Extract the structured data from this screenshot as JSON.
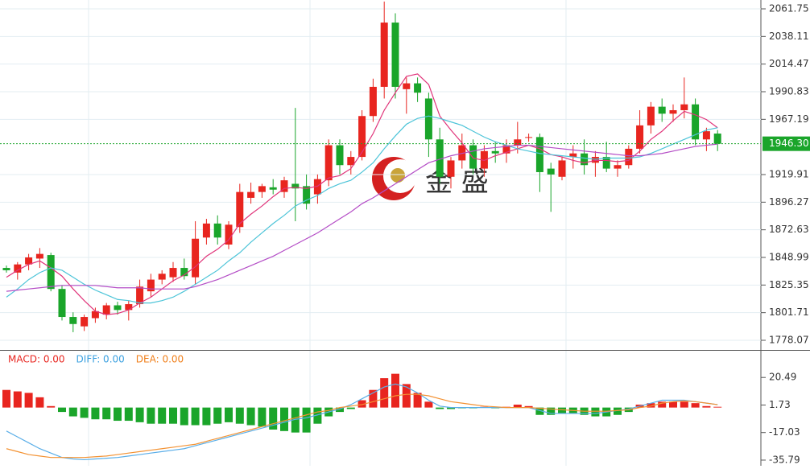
{
  "chart_data": [
    {
      "type": "candlestick",
      "watermark": "金 盛",
      "up_color": "#e8251f",
      "down_color": "#1aa52a",
      "open": [
        1840,
        1836,
        1843,
        1848,
        1851,
        1822,
        1798,
        1790,
        1797,
        1800,
        1808,
        1804,
        1809,
        1820,
        1830,
        1832,
        1840,
        1832,
        1866,
        1878,
        1860,
        1875,
        1900,
        1905,
        1909,
        1905,
        1912,
        1910,
        1903,
        1915,
        1945,
        1928,
        1935,
        1970,
        1995,
        2050,
        1993,
        1998,
        1985,
        1950,
        1918,
        1932,
        1945,
        1925,
        1940,
        1938,
        1945,
        1952,
        1952,
        1925,
        1918,
        1935,
        1938,
        1930,
        1935,
        1925,
        1928,
        1942,
        1962,
        1978,
        1972,
        1975,
        1980,
        1950,
        1955
      ],
      "high": [
        1842,
        1845,
        1852,
        1857,
        1853,
        1825,
        1802,
        1800,
        1806,
        1810,
        1811,
        1812,
        1830,
        1835,
        1838,
        1845,
        1848,
        1880,
        1882,
        1885,
        1880,
        1912,
        1913,
        1912,
        1916,
        1918,
        1977,
        1920,
        1920,
        1950,
        1950,
        1940,
        1975,
        2002,
        2068,
        2058,
        2003,
        2003,
        1990,
        1960,
        1935,
        1955,
        1950,
        1945,
        1948,
        1950,
        1965,
        1955,
        1955,
        1930,
        1935,
        1945,
        1950,
        1940,
        1948,
        1932,
        1945,
        1975,
        1982,
        1985,
        1980,
        2003,
        1985,
        1960,
        1958
      ],
      "low": [
        1836,
        1830,
        1838,
        1840,
        1820,
        1795,
        1785,
        1786,
        1793,
        1796,
        1800,
        1795,
        1806,
        1815,
        1826,
        1828,
        1830,
        1826,
        1860,
        1860,
        1856,
        1870,
        1895,
        1900,
        1903,
        1900,
        1880,
        1890,
        1895,
        1910,
        1920,
        1920,
        1932,
        1965,
        1985,
        1985,
        1972,
        1982,
        1935,
        1912,
        1908,
        1925,
        1920,
        1918,
        1930,
        1930,
        1938,
        1948,
        1905,
        1888,
        1915,
        1925,
        1920,
        1918,
        1922,
        1918,
        1925,
        1938,
        1955,
        1965,
        1965,
        1968,
        1945,
        1940,
        1940
      ],
      "close": [
        1838,
        1843,
        1849,
        1852,
        1822,
        1798,
        1792,
        1798,
        1803,
        1808,
        1804,
        1809,
        1824,
        1830,
        1835,
        1840,
        1833,
        1865,
        1878,
        1866,
        1877,
        1905,
        1905,
        1910,
        1907,
        1915,
        1908,
        1895,
        1916,
        1945,
        1928,
        1935,
        1970,
        1995,
        2050,
        1995,
        1998,
        1990,
        1950,
        1918,
        1932,
        1945,
        1925,
        1940,
        1938,
        1945,
        1950,
        1952,
        1922,
        1920,
        1932,
        1938,
        1928,
        1935,
        1925,
        1928,
        1942,
        1962,
        1978,
        1972,
        1975,
        1980,
        1950,
        1957,
        1946.3
      ],
      "series": [
        {
          "color": "#e0347a",
          "values": [
            1832,
            1838,
            1843,
            1846,
            1840,
            1833,
            1822,
            1812,
            1803,
            1800,
            1801,
            1804,
            1810,
            1815,
            1822,
            1829,
            1834,
            1841,
            1850,
            1856,
            1864,
            1878,
            1886,
            1893,
            1901,
            1908,
            1909,
            1908,
            1910,
            1917,
            1919,
            1925,
            1939,
            1955,
            1975,
            1990,
            2004,
            2006,
            1997,
            1970,
            1958,
            1947,
            1934,
            1932,
            1936,
            1939,
            1942,
            1945,
            1942,
            1937,
            1935,
            1932,
            1930,
            1932,
            1932,
            1931,
            1932,
            1940,
            1950,
            1957,
            1966,
            1974,
            1971,
            1967,
            1960
          ]
        },
        {
          "color": "#4cc4d8",
          "values": [
            1815,
            1822,
            1830,
            1836,
            1840,
            1838,
            1832,
            1826,
            1821,
            1817,
            1813,
            1812,
            1810,
            1810,
            1812,
            1815,
            1820,
            1826,
            1832,
            1838,
            1846,
            1853,
            1862,
            1870,
            1878,
            1885,
            1893,
            1898,
            1902,
            1908,
            1912,
            1915,
            1922,
            1930,
            1942,
            1953,
            1963,
            1968,
            1970,
            1968,
            1965,
            1962,
            1957,
            1952,
            1948,
            1945,
            1942,
            1940,
            1938,
            1937,
            1936,
            1935,
            1934,
            1933,
            1934,
            1934,
            1934,
            1935,
            1938,
            1942,
            1946,
            1950,
            1954,
            1958,
            1960
          ]
        },
        {
          "color": "#b44dc6",
          "values": [
            1820,
            1821,
            1822,
            1823,
            1824,
            1825,
            1825,
            1825,
            1825,
            1824,
            1823,
            1823,
            1823,
            1822,
            1822,
            1822,
            1822,
            1824,
            1827,
            1830,
            1834,
            1838,
            1842,
            1846,
            1850,
            1855,
            1860,
            1865,
            1870,
            1876,
            1882,
            1888,
            1895,
            1900,
            1906,
            1912,
            1918,
            1924,
            1930,
            1933,
            1936,
            1938,
            1940,
            1942,
            1943,
            1944,
            1945,
            1945,
            1944,
            1943,
            1942,
            1941,
            1940,
            1939,
            1938,
            1937,
            1936,
            1936,
            1937,
            1938,
            1940,
            1942,
            1944,
            1945,
            1946
          ]
        }
      ],
      "last_price": {
        "value": 1946.3,
        "label": "1946.30"
      },
      "last_price_color": "#1aa52a",
      "ylim": [
        1769.8,
        2069.32
      ],
      "yticks": [
        2061.75,
        2038.11,
        2014.47,
        1990.83,
        1967.19,
        1919.91,
        1896.27,
        1872.63,
        1848.99,
        1825.35,
        1801.71,
        1778.07
      ],
      "grid": true
    },
    {
      "type": "macd",
      "legend": [
        {
          "label": "MACD: 0.00",
          "color": "#e8251f"
        },
        {
          "label": "DIFF: 0.00",
          "color": "#3aa0e0"
        },
        {
          "label": "DEA: 0.00",
          "color": "#f07f1a"
        }
      ],
      "up_color": "#e8251f",
      "down_color": "#1aa52a",
      "values": [
        12,
        11,
        10,
        7,
        1,
        -3,
        -6,
        -7,
        -8,
        -8,
        -9,
        -9,
        -10,
        -11,
        -11,
        -11,
        -12,
        -12,
        -12,
        -11,
        -10,
        -11,
        -12,
        -13,
        -15,
        -16,
        -17,
        -17,
        -11,
        -6,
        -3,
        -1,
        5,
        12,
        20,
        23,
        16,
        10,
        4,
        -1,
        -1,
        -0.5,
        -0.5,
        0.5,
        -0.5,
        0.5,
        2,
        1,
        -5,
        -5,
        -4,
        -4,
        -5,
        -6,
        -6,
        -5,
        -3,
        2,
        3,
        4,
        4,
        4,
        3,
        1,
        0.5
      ],
      "series": [
        {
          "color": "#5aaee8",
          "values": [
            -16,
            -20,
            -24,
            -28,
            -31,
            -34,
            -35,
            -35.5,
            -35,
            -34.5,
            -34,
            -33,
            -32,
            -31,
            -30,
            -29,
            -28,
            -26,
            -24,
            -22,
            -20,
            -18,
            -16,
            -14,
            -12,
            -10,
            -8,
            -7,
            -5,
            -3,
            -1,
            2,
            6,
            10,
            14,
            16,
            14,
            10,
            5,
            1,
            0,
            0,
            0,
            0,
            0,
            0,
            0,
            0,
            -2,
            -4,
            -4,
            -4,
            -4,
            -4,
            -3,
            -2,
            -1,
            1,
            3,
            5,
            5,
            5,
            4,
            3,
            2
          ]
        },
        {
          "color": "#f39233",
          "values": [
            -28,
            -30,
            -32,
            -33,
            -34,
            -34,
            -34,
            -34,
            -33.5,
            -33,
            -32,
            -31,
            -30,
            -29,
            -28,
            -27,
            -26,
            -25,
            -23,
            -21,
            -19,
            -17,
            -15,
            -13,
            -11,
            -9,
            -7,
            -5,
            -3,
            -2,
            0,
            1,
            2,
            4,
            6,
            8,
            9,
            9,
            8,
            6,
            4,
            3,
            2,
            1,
            0.5,
            0,
            0,
            0,
            -0.5,
            -1,
            -1.5,
            -2,
            -2.5,
            -2.5,
            -2.5,
            -2,
            -1.5,
            0,
            1,
            3,
            4,
            4.5,
            4,
            3,
            2
          ]
        }
      ],
      "ylim": [
        -39.65,
        38.14
      ],
      "yticks": [
        20.49,
        1.73,
        -17.03,
        -35.79
      ]
    }
  ]
}
